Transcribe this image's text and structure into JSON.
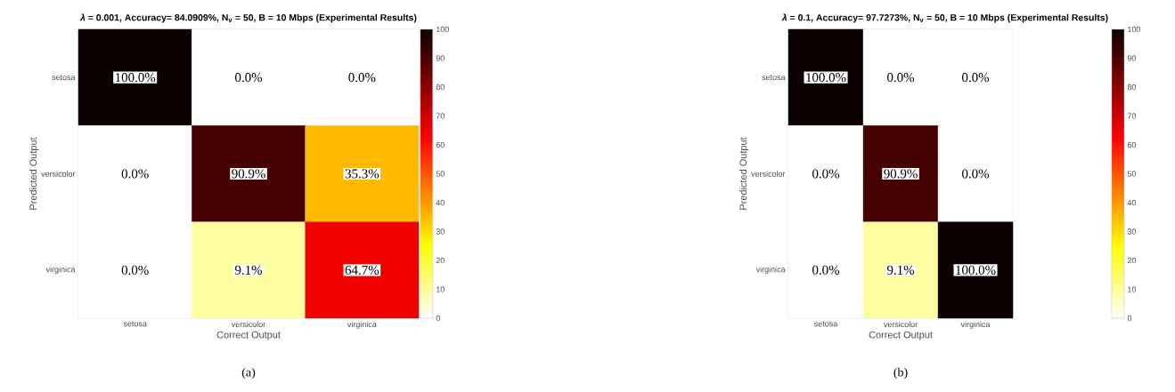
{
  "chart_data": [
    {
      "type": "heatmap",
      "title": "*λ* = 0.001, Accuracy= 84.0909%, N$_{v}$ = 50, B = 10 Mbps (Experimental Results)",
      "xlabel": "Correct Output",
      "ylabel": "Predicted Output",
      "categories": [
        "setosa",
        "versicolor",
        "virginica"
      ],
      "y_categories": [
        "setosa",
        "versicolor",
        "virginica"
      ],
      "cells": [
        [
          100,
          0,
          0
        ],
        [
          0,
          90.9,
          35.3
        ],
        [
          0,
          9.1,
          64.7
        ]
      ],
      "cell_labels": [
        [
          "100.0%",
          "0.0%",
          "0.0%"
        ],
        [
          "0.0%",
          "90.9%",
          "35.3%"
        ],
        [
          "0.0%",
          "9.1%",
          "64.7%"
        ]
      ],
      "clim": [
        0,
        100
      ],
      "cticks": [
        0,
        10,
        20,
        30,
        40,
        50,
        60,
        70,
        80,
        90,
        100
      ],
      "annotations": [
        "(a)"
      ]
    },
    {
      "type": "heatmap",
      "title": "*λ* = 0.1, Accuracy= 97.7273%, N$_{v}$ = 50, B = 10 Mbps (Experimental Results)",
      "xlabel": "Correct Output",
      "ylabel": "Predicted Output",
      "categories": [
        "setosa",
        "versicolor",
        "virginica"
      ],
      "y_categories": [
        "setosa",
        "versicolor",
        "virginica"
      ],
      "cells": [
        [
          100,
          0,
          0
        ],
        [
          0,
          90.9,
          0
        ],
        [
          0,
          9.1,
          100
        ]
      ],
      "cell_labels": [
        [
          "100.0%",
          "0.0%",
          "0.0%"
        ],
        [
          "0.0%",
          "90.9%",
          "0.0%"
        ],
        [
          "0.0%",
          "9.1%",
          "100.0%"
        ]
      ],
      "clim": [
        0,
        100
      ],
      "cticks": [
        0,
        10,
        20,
        30,
        40,
        50,
        60,
        70,
        80,
        90,
        100
      ],
      "annotations": [
        "(b)"
      ]
    }
  ]
}
